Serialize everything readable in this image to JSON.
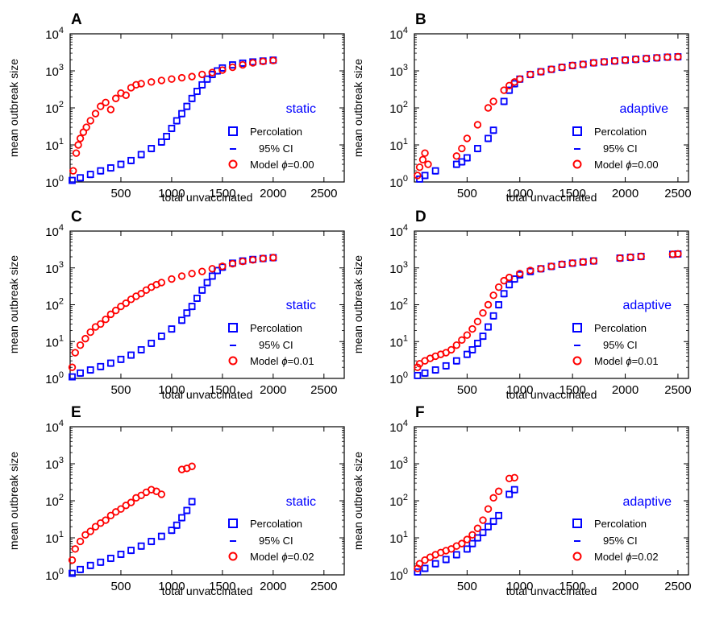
{
  "figure": {
    "x_axis_label": "total unvaccinated",
    "y_axis_label": "mean outbreak size",
    "y_tick_base": "10",
    "y_tick_exponents": [
      "0",
      "1",
      "2",
      "3",
      "4"
    ],
    "x_tick_labels": [
      "500",
      "1000",
      "1500",
      "2000",
      "2500"
    ],
    "legend_labels": {
      "percolation": "Percolation",
      "ci": "95% CI",
      "model_prefix": "Model"
    },
    "phi_symbol": "ϕ",
    "colors": {
      "percolation": "#0000ff",
      "model": "#ff0000",
      "ci": "#0000ff",
      "mode_label": "#0000ff",
      "axis": "#000000"
    }
  },
  "chart_data": [
    {
      "panel": "A",
      "type": "scatter",
      "mode_label": "static",
      "phi_text": "=0.00",
      "phi": 0.0,
      "xlabel": "total unvaccinated",
      "ylabel": "mean outbreak size",
      "xlim": [
        0,
        2700
      ],
      "ylim": [
        1,
        10000
      ],
      "yscale": "log",
      "xmax_data": 2000,
      "percolation": {
        "x": [
          20,
          100,
          200,
          300,
          400,
          500,
          600,
          700,
          800,
          900,
          950,
          1000,
          1050,
          1100,
          1150,
          1200,
          1250,
          1300,
          1350,
          1400,
          1450,
          1500,
          1600,
          1700,
          1800,
          1900,
          2000
        ],
        "y": [
          1.1,
          1.3,
          1.6,
          2.0,
          2.4,
          3.0,
          3.8,
          5.5,
          8,
          12,
          17,
          28,
          45,
          70,
          110,
          180,
          280,
          420,
          600,
          800,
          1000,
          1200,
          1450,
          1620,
          1750,
          1850,
          1950
        ]
      },
      "model": {
        "x": [
          30,
          60,
          80,
          100,
          130,
          160,
          200,
          250,
          300,
          350,
          400,
          450,
          500,
          550,
          600,
          650,
          700,
          800,
          900,
          1000,
          1100,
          1200,
          1300,
          1400,
          1500,
          1600,
          1700,
          1800,
          1900,
          2000
        ],
        "y": [
          2,
          6,
          10,
          15,
          22,
          30,
          45,
          70,
          110,
          140,
          90,
          180,
          250,
          220,
          350,
          420,
          450,
          500,
          550,
          600,
          650,
          700,
          800,
          900,
          1050,
          1250,
          1450,
          1650,
          1800,
          1900
        ]
      }
    },
    {
      "panel": "B",
      "type": "scatter",
      "mode_label": "adaptive",
      "phi_text": "=0.00",
      "phi": 0.0,
      "xlabel": "total unvaccinated",
      "ylabel": "mean outbreak size",
      "xlim": [
        0,
        2600
      ],
      "ylim": [
        1,
        10000
      ],
      "yscale": "log",
      "xmax_data": 2500,
      "percolation": {
        "x": [
          50,
          100,
          200,
          400,
          450,
          500,
          600,
          700,
          750,
          850,
          900,
          950,
          1000,
          1100,
          1200,
          1300,
          1400,
          1500,
          1600,
          1700,
          1800,
          1900,
          2000,
          2100,
          2200,
          2300,
          2400,
          2500
        ],
        "y": [
          1.2,
          1.5,
          2.0,
          3.0,
          3.5,
          4.5,
          8,
          15,
          25,
          150,
          300,
          450,
          600,
          800,
          950,
          1100,
          1250,
          1400,
          1500,
          1650,
          1750,
          1850,
          1950,
          2050,
          2150,
          2250,
          2350,
          2400
        ]
      },
      "model": {
        "x": [
          30,
          50,
          80,
          100,
          130,
          400,
          450,
          500,
          600,
          700,
          750,
          850,
          900,
          950,
          1000,
          1100,
          1200,
          1300,
          1400,
          1500,
          1600,
          1700,
          1800,
          1900,
          2000,
          2100,
          2200,
          2300,
          2400,
          2500
        ],
        "y": [
          1.5,
          2.5,
          4,
          6,
          3,
          5,
          8,
          15,
          35,
          100,
          150,
          300,
          400,
          500,
          600,
          800,
          950,
          1100,
          1250,
          1400,
          1500,
          1650,
          1750,
          1850,
          1950,
          2050,
          2150,
          2250,
          2350,
          2400
        ]
      }
    },
    {
      "panel": "C",
      "type": "scatter",
      "mode_label": "static",
      "phi_text": "=0.01",
      "phi": 0.01,
      "xlabel": "total unvaccinated",
      "ylabel": "mean outbreak size",
      "xlim": [
        0,
        2700
      ],
      "ylim": [
        1,
        10000
      ],
      "yscale": "log",
      "xmax_data": 2000,
      "percolation": {
        "x": [
          20,
          100,
          200,
          300,
          400,
          500,
          600,
          700,
          800,
          900,
          1000,
          1100,
          1150,
          1200,
          1250,
          1300,
          1350,
          1400,
          1450,
          1500,
          1600,
          1700,
          1800,
          1900,
          2000
        ],
        "y": [
          1.1,
          1.4,
          1.7,
          2.1,
          2.6,
          3.3,
          4.3,
          6,
          9,
          14,
          22,
          38,
          60,
          90,
          150,
          250,
          400,
          600,
          850,
          1050,
          1350,
          1550,
          1700,
          1800,
          1900
        ]
      },
      "model": {
        "x": [
          20,
          50,
          100,
          150,
          200,
          250,
          300,
          350,
          400,
          450,
          500,
          550,
          600,
          650,
          700,
          750,
          800,
          850,
          900,
          1000,
          1100,
          1200,
          1300,
          1400,
          1500,
          1600,
          1700,
          1800,
          1900,
          2000
        ],
        "y": [
          2,
          5,
          8,
          12,
          18,
          25,
          30,
          40,
          55,
          70,
          90,
          110,
          140,
          170,
          200,
          250,
          300,
          350,
          400,
          500,
          600,
          700,
          800,
          950,
          1100,
          1300,
          1500,
          1650,
          1800,
          1900
        ]
      }
    },
    {
      "panel": "D",
      "type": "scatter",
      "mode_label": "adaptive",
      "phi_text": "=0.01",
      "phi": 0.01,
      "xlabel": "total unvaccinated",
      "ylabel": "mean outbreak size",
      "xlim": [
        0,
        2600
      ],
      "ylim": [
        1,
        10000
      ],
      "yscale": "log",
      "xmax_data": 2500,
      "percolation": {
        "x": [
          30,
          100,
          200,
          300,
          400,
          500,
          550,
          600,
          650,
          700,
          750,
          800,
          850,
          900,
          950,
          1000,
          1100,
          1200,
          1300,
          1400,
          1500,
          1600,
          1700,
          1950,
          2050,
          2150,
          2450,
          2500
        ],
        "y": [
          1.2,
          1.4,
          1.7,
          2.2,
          3.0,
          4.5,
          6,
          9,
          14,
          25,
          50,
          100,
          200,
          350,
          500,
          650,
          800,
          950,
          1100,
          1250,
          1350,
          1450,
          1550,
          1850,
          1950,
          2050,
          2350,
          2400
        ]
      },
      "model": {
        "x": [
          30,
          50,
          100,
          150,
          200,
          250,
          300,
          350,
          400,
          450,
          500,
          550,
          600,
          650,
          700,
          750,
          800,
          850,
          900,
          1000,
          1100,
          1200,
          1300,
          1400,
          1500,
          1600,
          1700,
          1950,
          2050,
          2150,
          2450,
          2500
        ],
        "y": [
          2,
          2.5,
          3,
          3.5,
          4,
          4.5,
          5,
          6,
          8,
          11,
          15,
          22,
          35,
          60,
          100,
          180,
          300,
          450,
          550,
          700,
          850,
          950,
          1100,
          1250,
          1350,
          1450,
          1550,
          1850,
          1950,
          2050,
          2350,
          2400
        ]
      }
    },
    {
      "panel": "E",
      "type": "scatter",
      "mode_label": "static",
      "phi_text": "=0.02",
      "phi": 0.02,
      "xlabel": "total unvaccinated",
      "ylabel": "mean outbreak size",
      "xlim": [
        0,
        2700
      ],
      "ylim": [
        1,
        10000
      ],
      "yscale": "log",
      "xmax_data": 1200,
      "percolation": {
        "x": [
          20,
          100,
          200,
          300,
          400,
          500,
          600,
          700,
          800,
          900,
          1000,
          1050,
          1100,
          1150,
          1200
        ],
        "y": [
          1.1,
          1.4,
          1.8,
          2.2,
          2.8,
          3.6,
          4.6,
          6,
          8,
          11,
          16,
          22,
          35,
          55,
          95
        ]
      },
      "model": {
        "x": [
          20,
          50,
          100,
          150,
          200,
          250,
          300,
          350,
          400,
          450,
          500,
          550,
          600,
          650,
          700,
          750,
          800,
          850,
          900,
          1100,
          1150,
          1200
        ],
        "y": [
          2.5,
          5,
          8,
          12,
          15,
          20,
          25,
          30,
          40,
          50,
          60,
          75,
          90,
          120,
          140,
          170,
          200,
          180,
          150,
          700,
          750,
          850
        ]
      }
    },
    {
      "panel": "F",
      "type": "scatter",
      "mode_label": "adaptive",
      "phi_text": "=0.02",
      "phi": 0.02,
      "xlabel": "total unvaccinated",
      "ylabel": "mean outbreak size",
      "xlim": [
        0,
        2600
      ],
      "ylim": [
        1,
        10000
      ],
      "yscale": "log",
      "xmax_data": 950,
      "percolation": {
        "x": [
          30,
          100,
          200,
          300,
          400,
          500,
          550,
          600,
          650,
          700,
          750,
          800,
          900,
          950
        ],
        "y": [
          1.2,
          1.5,
          2.0,
          2.6,
          3.5,
          5,
          7,
          10,
          14,
          20,
          28,
          40,
          150,
          200
        ]
      },
      "model": {
        "x": [
          30,
          50,
          100,
          150,
          200,
          250,
          300,
          350,
          400,
          450,
          500,
          550,
          600,
          650,
          700,
          750,
          800,
          900,
          950
        ],
        "y": [
          1.5,
          2,
          2.5,
          3,
          3.5,
          4,
          4.5,
          5,
          6,
          7,
          9,
          12,
          18,
          30,
          60,
          120,
          180,
          400,
          420
        ]
      }
    }
  ]
}
